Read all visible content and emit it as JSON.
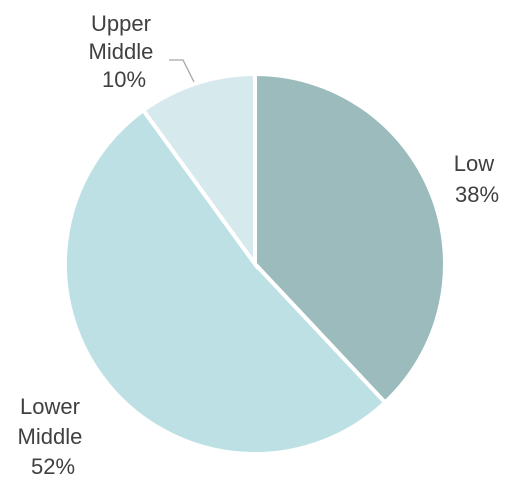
{
  "chart_data": {
    "type": "pie",
    "slices": [
      {
        "label": "Low",
        "value": 38,
        "value_label": "38%",
        "color": "#9bbbbc"
      },
      {
        "label": "Lower Middle",
        "value": 52,
        "value_label": "52%",
        "color": "#bce0e4"
      },
      {
        "label": "Upper Middle",
        "value": 10,
        "value_label": "10%",
        "color": "#d6e9ed"
      }
    ],
    "start": "12 o'clock",
    "direction": "clockwise",
    "title": "",
    "legend": "none",
    "labels": "outside with category name and percent"
  }
}
